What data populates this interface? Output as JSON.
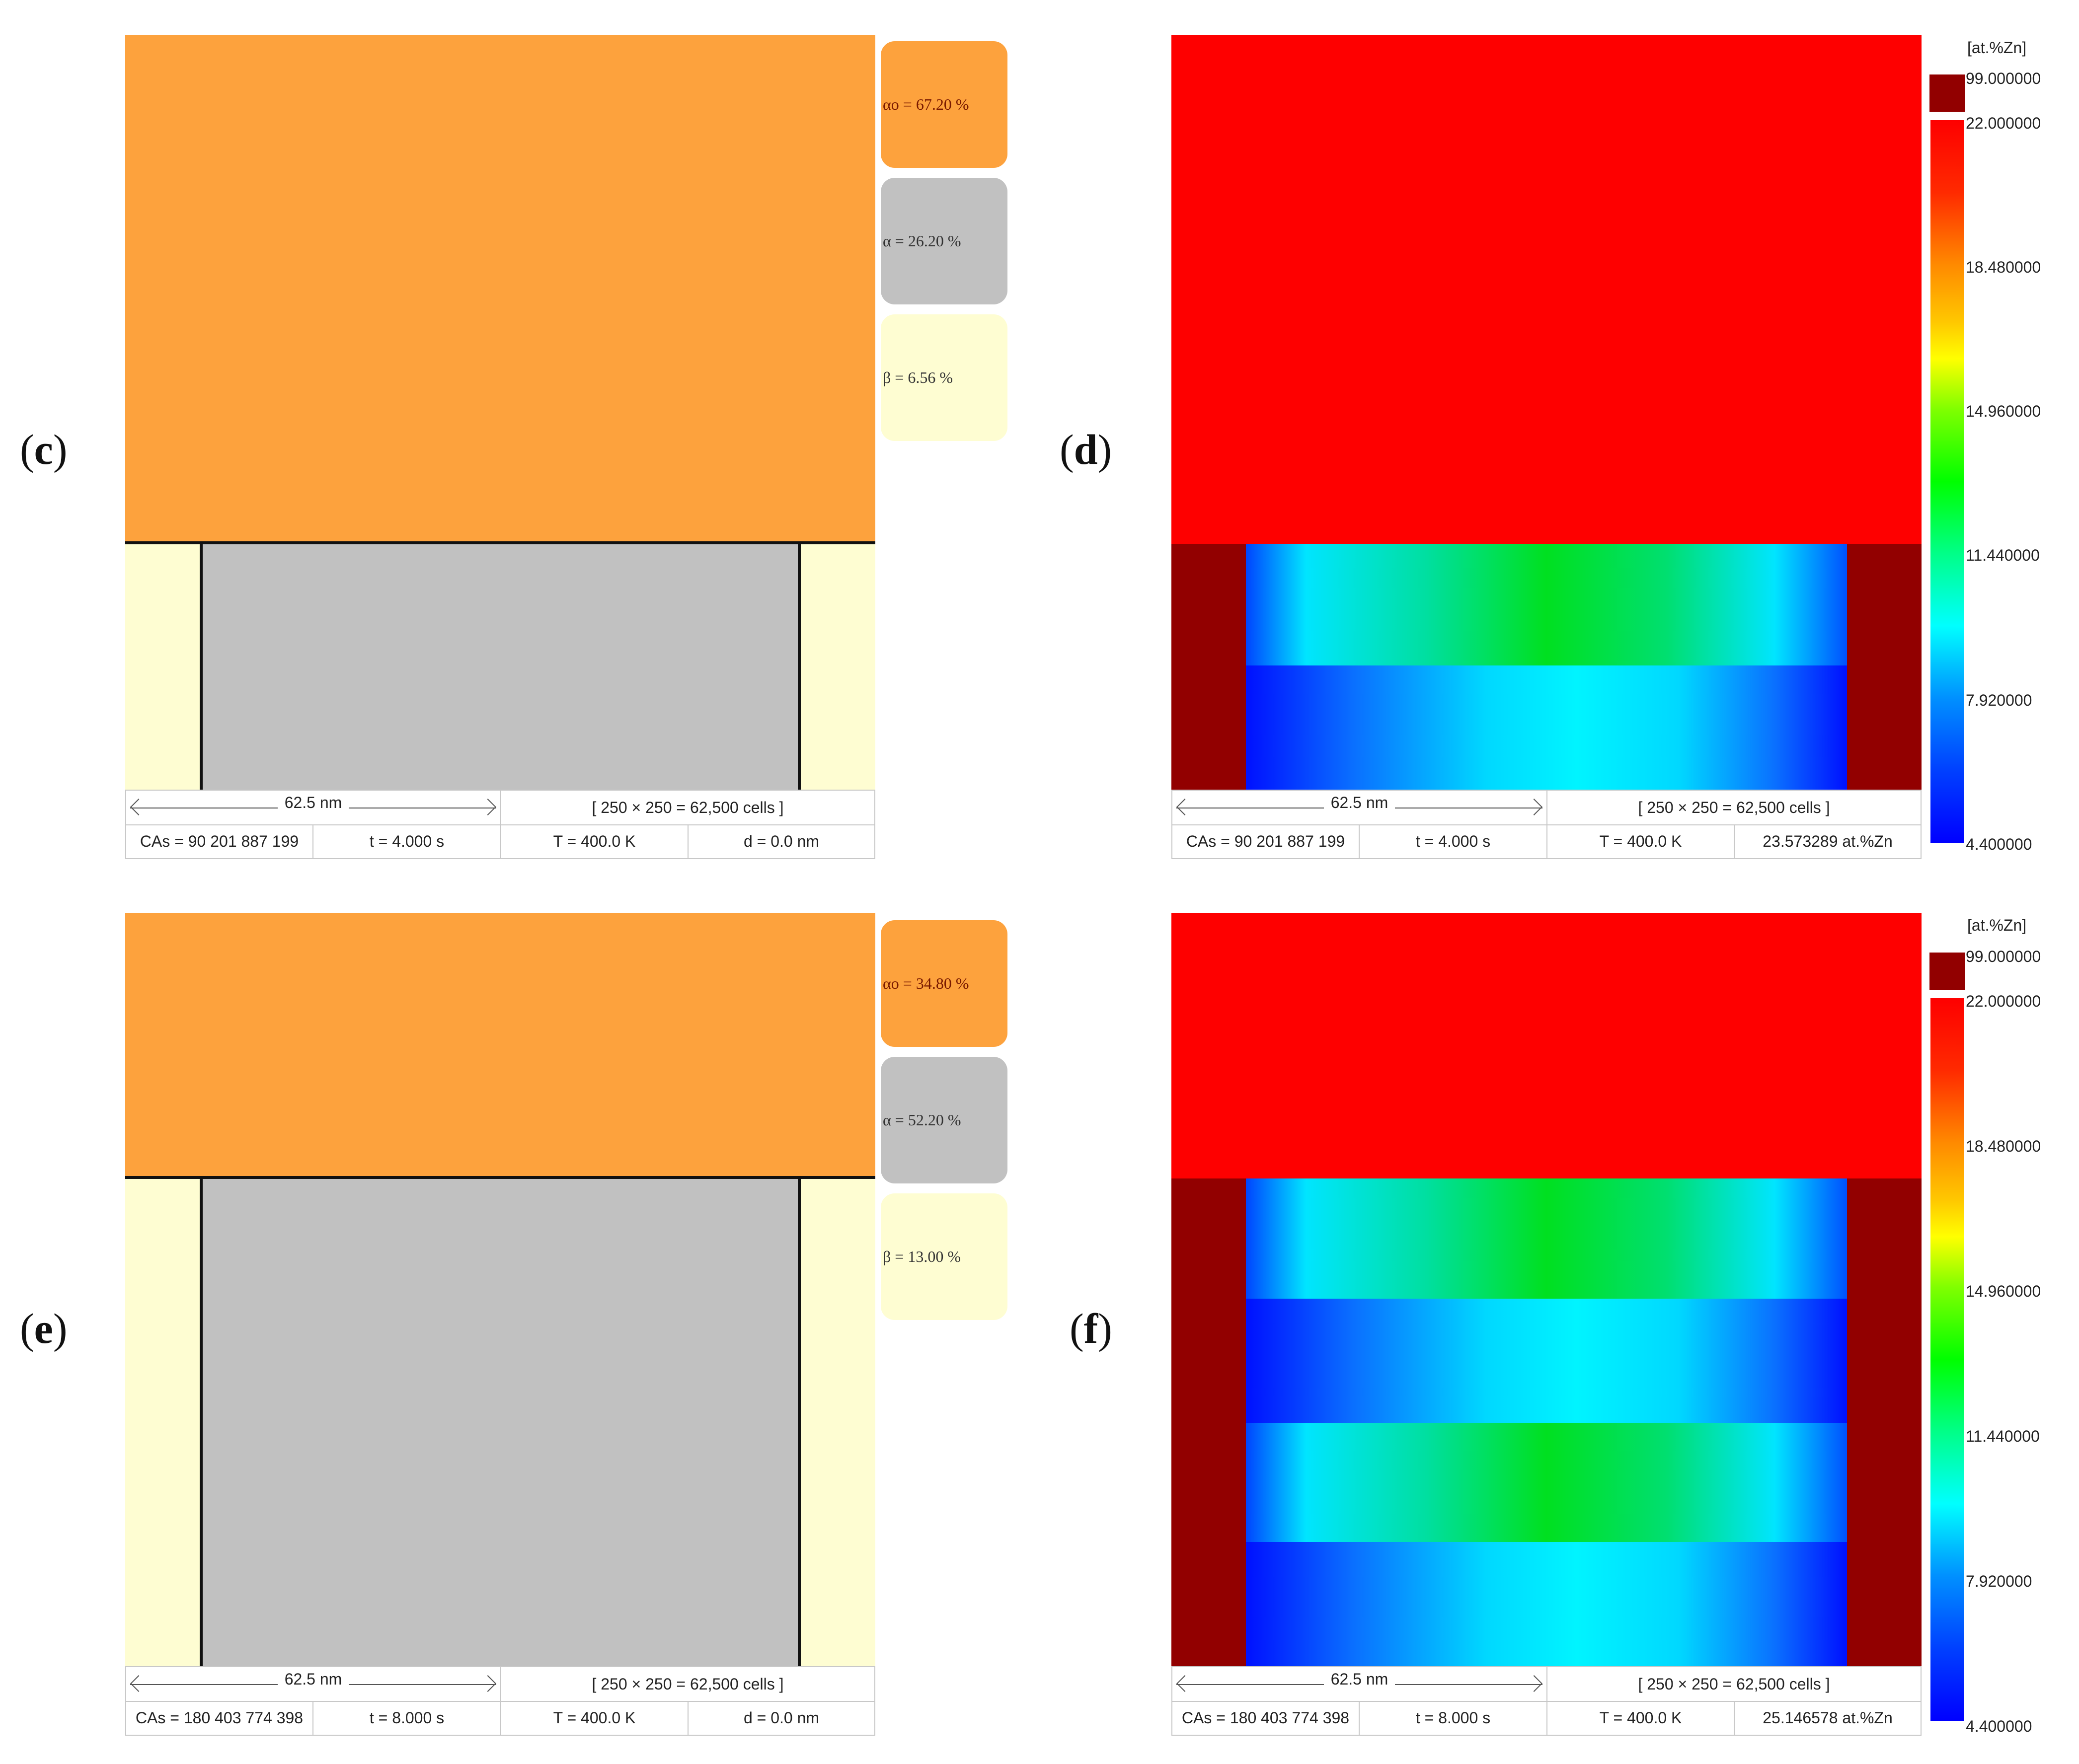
{
  "panels": {
    "c": {
      "label": "c",
      "alpha0": "αo = 67.20 %",
      "alpha": "α = 26.20 %",
      "beta": "β = 6.56 %",
      "scale": "62.5 nm",
      "cells": "[ 250 × 250 = 62,500 cells ]",
      "cas": "CAs = 90 201 887 199",
      "time": "t = 4.000 s",
      "temp": "T = 400.0 K",
      "extra": "d = 0.0 nm"
    },
    "d": {
      "label": "d",
      "unit": "[at.%Zn]",
      "scale": "62.5 nm",
      "cells": "[ 250 × 250 = 62,500 cells ]",
      "cas": "CAs = 90 201 887 199",
      "time": "t = 4.000 s",
      "temp": "T = 400.0 K",
      "extra": "23.573289 at.%Zn"
    },
    "e": {
      "label": "e",
      "alpha0": "αo = 34.80 %",
      "alpha": "α = 52.20 %",
      "beta": "β = 13.00 %",
      "scale": "62.5 nm",
      "cells": "[ 250 × 250 = 62,500 cells ]",
      "cas": "CAs = 180 403 774 398",
      "time": "t = 8.000 s",
      "temp": "T = 400.0 K",
      "extra": "d = 0.0 nm"
    },
    "f": {
      "label": "f",
      "unit": "[at.%Zn]",
      "scale": "62.5 nm",
      "cells": "[ 250 × 250 = 62,500 cells ]",
      "cas": "CAs = 180 403 774 398",
      "time": "t = 8.000 s",
      "temp": "T = 400.0 K",
      "extra": "25.146578 at.%Zn"
    }
  },
  "colorbar": {
    "cap": "99.000000",
    "ticks": [
      "22.000000",
      "18.480000",
      "14.960000",
      "11.440000",
      "7.920000",
      "4.400000"
    ]
  },
  "phase_fractions": {
    "c": {
      "alpha0": 67.2,
      "alpha": 26.2,
      "beta": 6.56
    },
    "e": {
      "alpha0": 34.8,
      "alpha": 52.2,
      "beta": 13.0
    }
  },
  "colors": {
    "alpha0": "#fda23d",
    "alpha": "#c1c1c1",
    "beta": "#fefdd2",
    "conc_high": "#fe0000",
    "conc_cap": "#920000"
  }
}
